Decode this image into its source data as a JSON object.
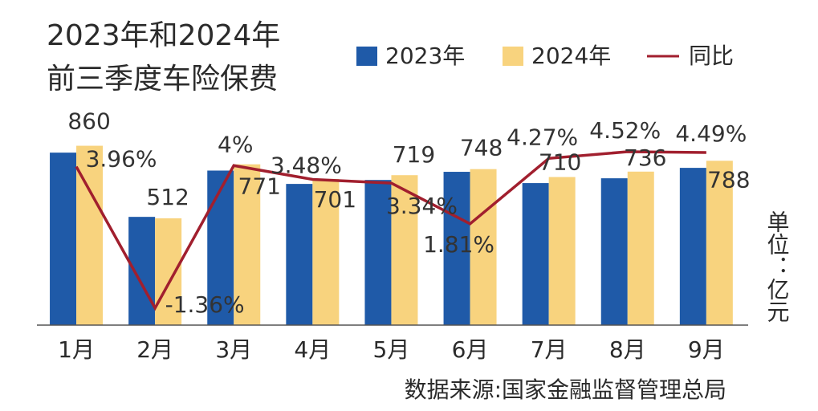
{
  "chart_data": {
    "type": "bar",
    "title": [
      "2023年和2024年",
      "前三季度车险保费"
    ],
    "categories": [
      "1月",
      "2月",
      "3月",
      "4月",
      "5月",
      "6月",
      "7月",
      "8月",
      "9月"
    ],
    "series": [
      {
        "name": "2023年",
        "color": "#1f5aa8",
        "values": [
          827,
          519,
          741,
          677,
          696,
          735,
          681,
          704,
          754
        ]
      },
      {
        "name": "2024年",
        "color": "#f8d37e",
        "values": [
          860,
          512,
          771,
          701,
          719,
          748,
          710,
          736,
          788
        ]
      },
      {
        "name": "同比",
        "color": "#a11f2e",
        "type": "line",
        "axis": "y2",
        "values": [
          3.96,
          -1.36,
          4,
          3.48,
          3.34,
          1.81,
          4.27,
          4.52,
          4.49
        ],
        "value_labels": [
          "3.96%",
          "-1.36%",
          "4%",
          "3.48%",
          "3.34%",
          "1.81%",
          "4.27%",
          "4.52%",
          "4.49%"
        ]
      }
    ],
    "ylim": [
      0,
      1020
    ],
    "y2lim": [
      -2,
      6
    ],
    "unit": "单位：亿元",
    "source": "数据来源:国家金融监督管理总局"
  }
}
